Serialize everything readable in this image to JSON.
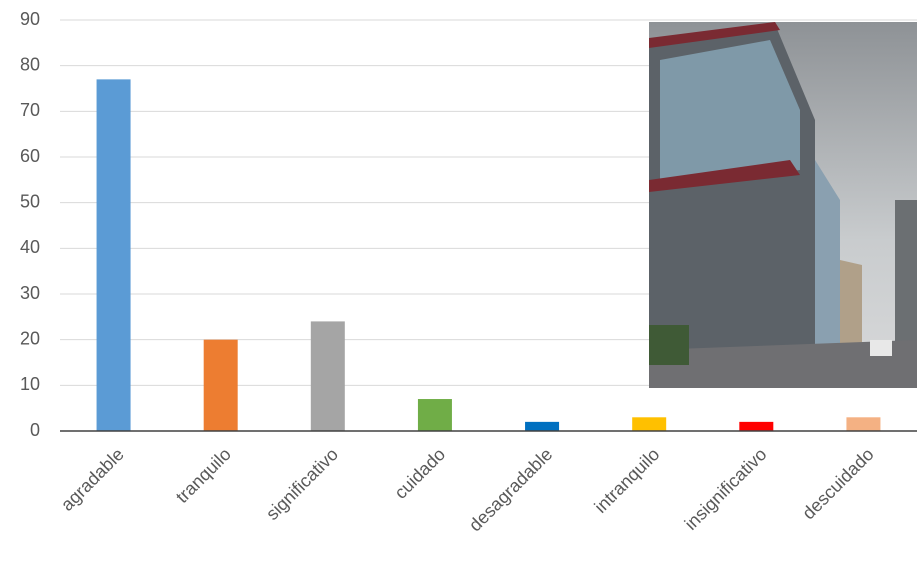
{
  "chart_data": {
    "type": "bar",
    "categories": [
      "agradable",
      "tranquilo",
      "significativo",
      "cuidado",
      "desagradable",
      "intranquilo",
      "insignificativo",
      "descuidado"
    ],
    "values": [
      77,
      20,
      24,
      7,
      2,
      3,
      2,
      3
    ],
    "colors": [
      "#5b9bd5",
      "#ed7d31",
      "#a5a5a5",
      "#70ad47",
      "#0070c0",
      "#ffc000",
      "#ff0000",
      "#f4b183"
    ],
    "ylim": [
      0,
      90
    ],
    "yticks": [
      0,
      10,
      20,
      30,
      40,
      50,
      60,
      70,
      80,
      90
    ],
    "grid": true
  }
}
